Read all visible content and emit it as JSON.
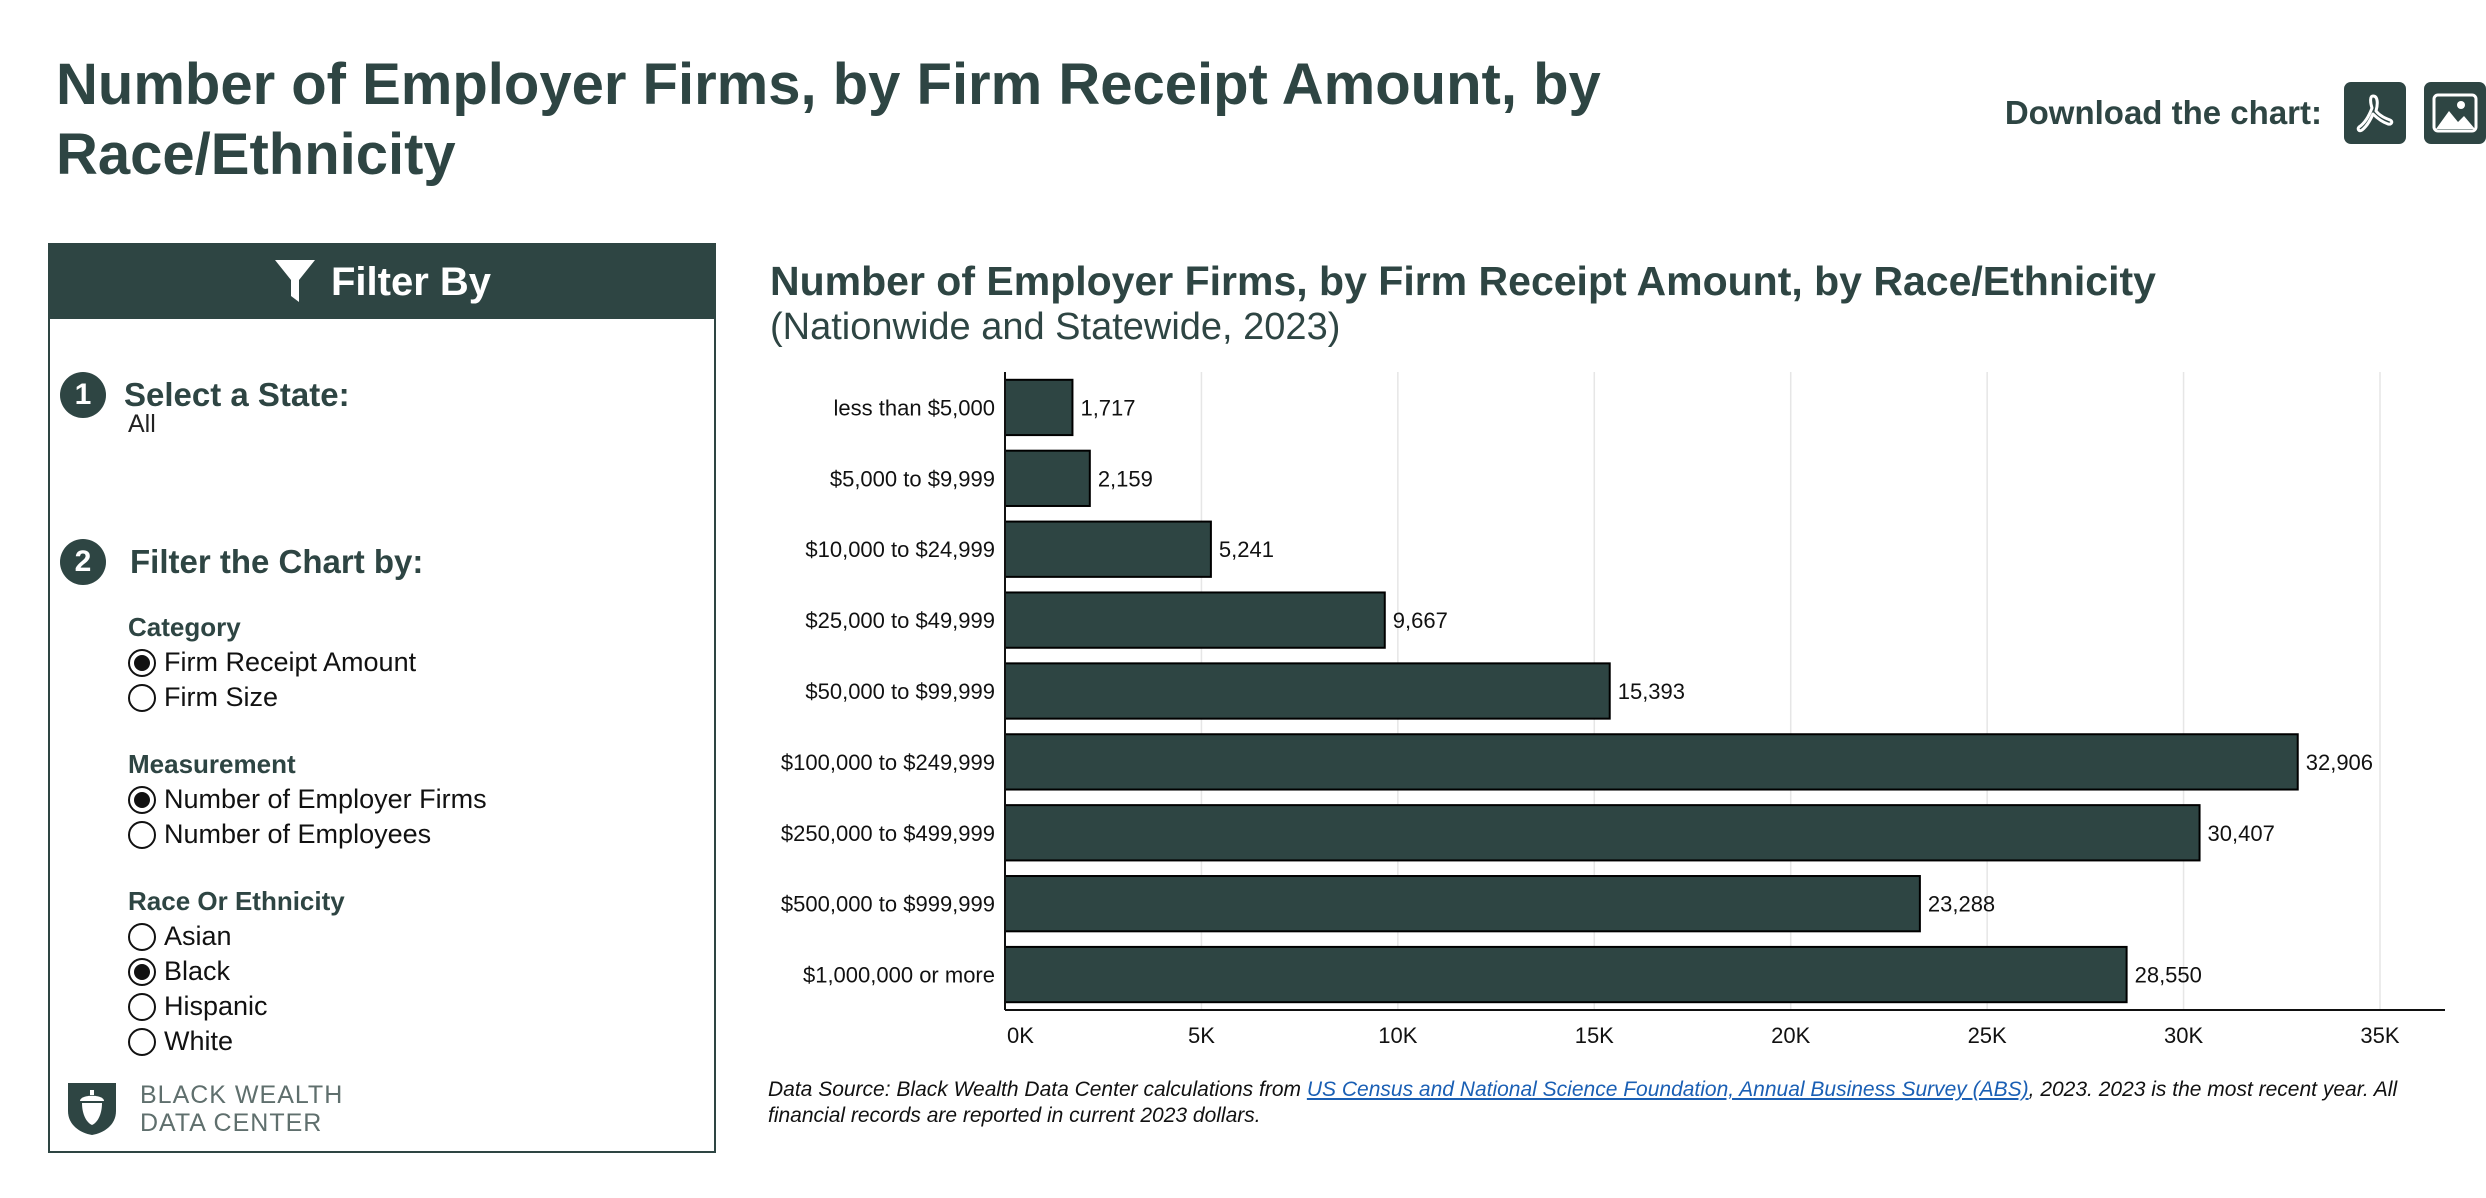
{
  "page": {
    "title": "Number of Employer Firms, by Firm Receipt Amount, by Race/Ethnicity",
    "download_label": "Download the chart:",
    "download_buttons": [
      {
        "icon": "pdf-icon"
      },
      {
        "icon": "image-icon"
      }
    ]
  },
  "filter": {
    "header": "Filter By",
    "step1": {
      "number": "1",
      "title": "Select a State:",
      "value": "All"
    },
    "step2": {
      "number": "2",
      "title": "Filter the Chart by:"
    },
    "groups": [
      {
        "title": "Category",
        "options": [
          {
            "label": "Firm Receipt Amount",
            "checked": true
          },
          {
            "label": "Firm Size",
            "checked": false
          }
        ]
      },
      {
        "title": "Measurement",
        "options": [
          {
            "label": "Number of Employer Firms",
            "checked": true
          },
          {
            "label": "Number of Employees",
            "checked": false
          }
        ]
      },
      {
        "title": "Race Or Ethnicity",
        "options": [
          {
            "label": "Asian",
            "checked": false
          },
          {
            "label": "Black",
            "checked": true
          },
          {
            "label": "Hispanic",
            "checked": false
          },
          {
            "label": "White",
            "checked": false
          }
        ]
      }
    ],
    "logo": {
      "line1": "BLACK WEALTH",
      "line2": "DATA CENTER"
    }
  },
  "chart_data": {
    "type": "bar",
    "orientation": "horizontal",
    "title": "Number of Employer Firms, by Firm Receipt Amount, by Race/Ethnicity",
    "subtitle": "(Nationwide and Statewide, 2023)",
    "categories": [
      "less than $5,000",
      "$5,000 to $9,999",
      "$10,000 to $24,999",
      "$25,000 to $49,999",
      "$50,000 to $99,999",
      "$100,000 to $249,999",
      "$250,000 to $499,999",
      "$500,000 to $999,999",
      "$1,000,000 or more"
    ],
    "values": [
      1717,
      2159,
      5241,
      9667,
      15393,
      32906,
      30407,
      23288,
      28550
    ],
    "value_labels": [
      "1,717",
      "2,159",
      "5,241",
      "9,667",
      "15,393",
      "32,906",
      "30,407",
      "23,288",
      "28,550"
    ],
    "xlim": [
      0,
      35000
    ],
    "xticks": [
      0,
      5000,
      10000,
      15000,
      20000,
      25000,
      30000,
      35000
    ],
    "xtick_labels": [
      "0K",
      "5K",
      "10K",
      "15K",
      "20K",
      "25K",
      "30K",
      "35K"
    ],
    "xlabel": "",
    "ylabel": "",
    "grid": true,
    "bar_color": "#2e4543"
  },
  "source": {
    "prefix": "Data Source: Black Wealth Data Center calculations from ",
    "link_text": "US Census and National Science Foundation, Annual Business Survey (ABS)",
    "suffix": ", 2023. 2023 is the most recent year. All financial records are reported in current 2023 dollars."
  }
}
